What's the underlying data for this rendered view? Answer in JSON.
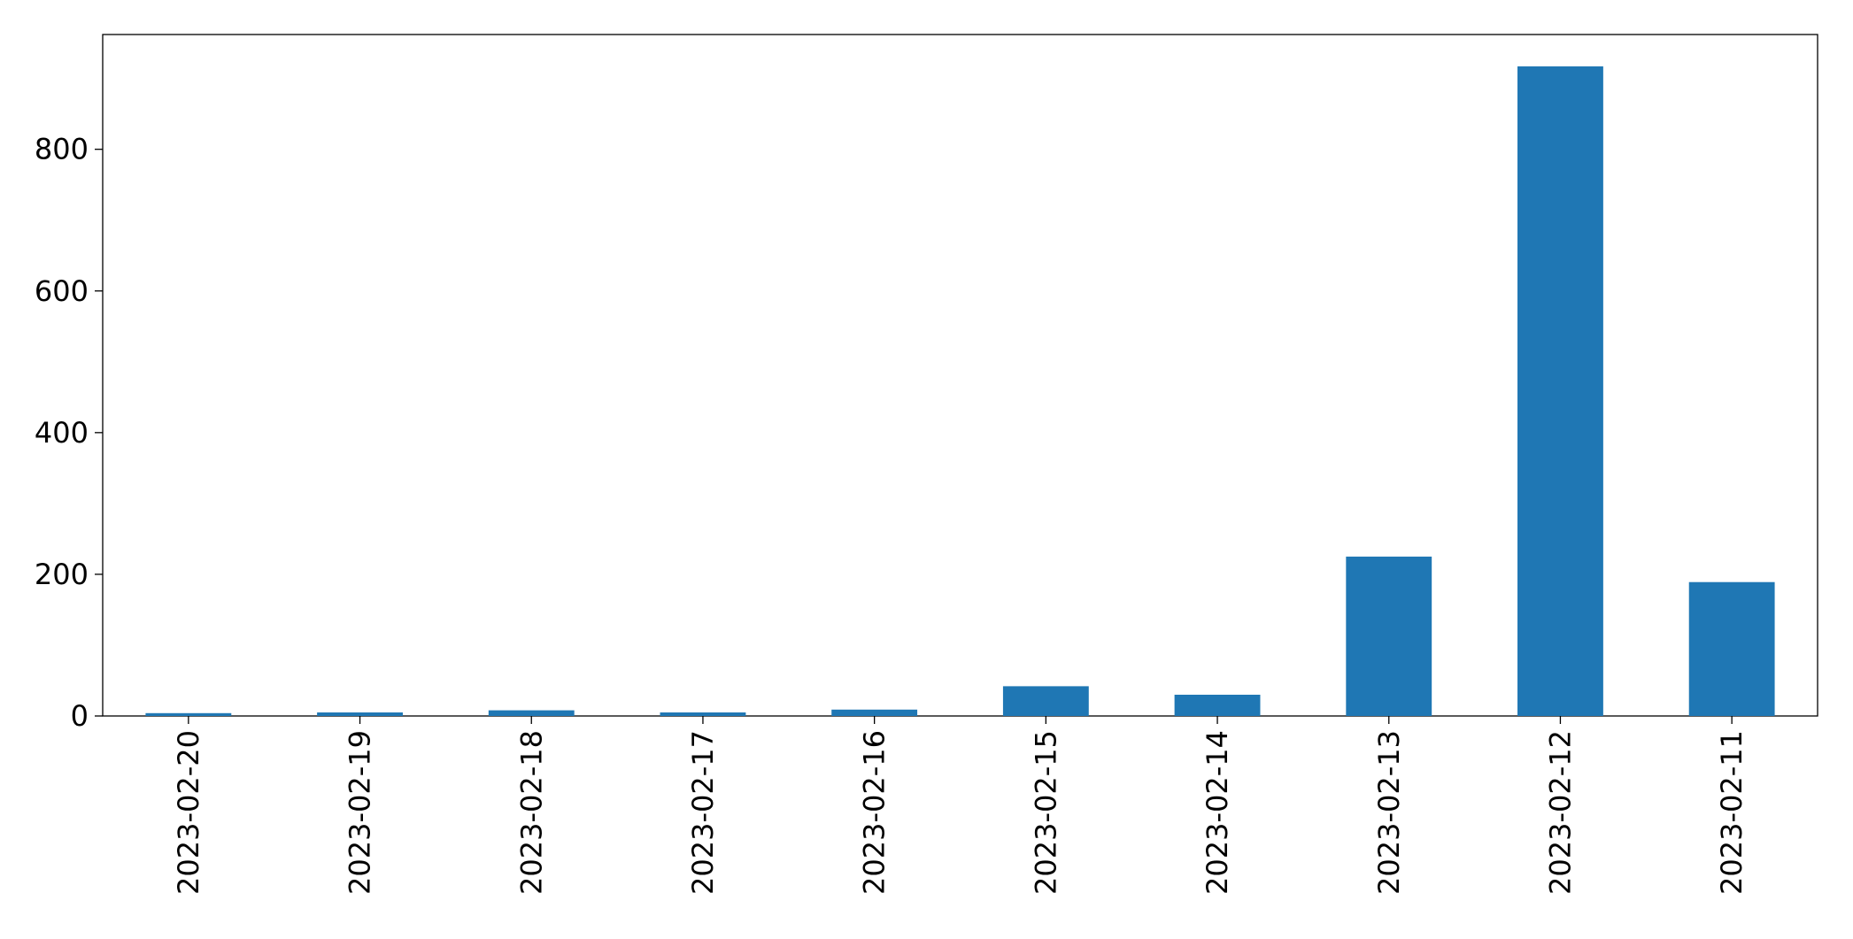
{
  "chart_data": {
    "type": "bar",
    "categories": [
      "2023-02-20",
      "2023-02-19",
      "2023-02-18",
      "2023-02-17",
      "2023-02-16",
      "2023-02-15",
      "2023-02-14",
      "2023-02-13",
      "2023-02-12",
      "2023-02-11"
    ],
    "values": [
      4,
      5,
      8,
      5,
      9,
      42,
      30,
      225,
      917,
      189
    ],
    "color": "#1f77b4",
    "ylim": [
      0,
      962
    ],
    "yticks": [
      0,
      200,
      400,
      600,
      800
    ],
    "grid": false
  }
}
